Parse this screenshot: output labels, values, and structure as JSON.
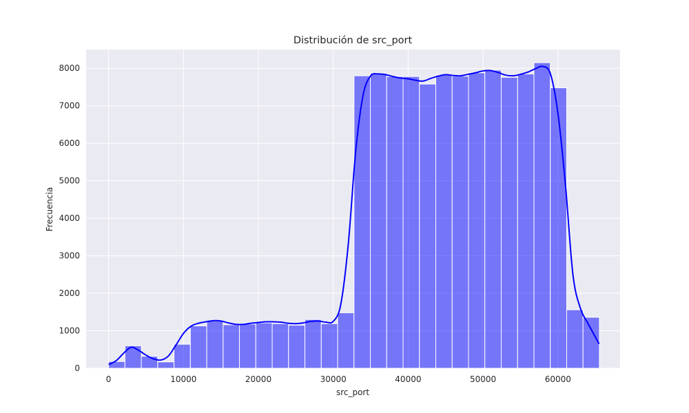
{
  "chart_data": {
    "type": "bar",
    "title": "Distribución de src_port",
    "xlabel": "src_port",
    "ylabel": "Frecuencia",
    "xlim": [
      -3000,
      68300
    ],
    "ylim": [
      0,
      8500
    ],
    "xticks": [
      0,
      10000,
      20000,
      30000,
      40000,
      50000,
      60000
    ],
    "yticks": [
      0,
      1000,
      2000,
      3000,
      4000,
      5000,
      6000,
      7000,
      8000
    ],
    "grid": true,
    "bin_range": [
      0,
      65535
    ],
    "bins": 30,
    "values": [
      180,
      600,
      320,
      170,
      640,
      1130,
      1260,
      1160,
      1180,
      1210,
      1190,
      1150,
      1300,
      1190,
      1480,
      7800,
      7870,
      7780,
      7780,
      7580,
      7820,
      7790,
      7880,
      7950,
      7760,
      7850,
      8150,
      7480,
      1560,
      1360
    ],
    "kde": {
      "x": [
        0,
        1000,
        2000,
        3000,
        4000,
        5000,
        6000,
        7000,
        8000,
        9000,
        10000,
        11000,
        12000,
        13000,
        14000,
        15000,
        16000,
        17000,
        18000,
        19000,
        20000,
        21000,
        22000,
        23000,
        24000,
        25000,
        26000,
        27000,
        28000,
        29000,
        30000,
        31000,
        32000,
        33000,
        34000,
        35000,
        36000,
        37000,
        38000,
        39000,
        40000,
        41000,
        42000,
        43000,
        44000,
        45000,
        46000,
        47000,
        48000,
        49000,
        50000,
        51000,
        52000,
        53000,
        54000,
        55000,
        56000,
        57000,
        58000,
        59000,
        60000,
        61000,
        62000,
        63000,
        64000,
        65500
      ],
      "y": [
        100,
        200,
        400,
        560,
        480,
        350,
        250,
        220,
        330,
        620,
        930,
        1120,
        1200,
        1240,
        1270,
        1260,
        1210,
        1170,
        1170,
        1200,
        1220,
        1240,
        1240,
        1230,
        1200,
        1190,
        1210,
        1250,
        1260,
        1230,
        1250,
        1700,
        3300,
        5800,
        7300,
        7800,
        7850,
        7830,
        7780,
        7740,
        7720,
        7680,
        7660,
        7730,
        7790,
        7830,
        7810,
        7800,
        7840,
        7880,
        7930,
        7940,
        7890,
        7820,
        7800,
        7840,
        7900,
        7990,
        8050,
        7850,
        6800,
        4900,
        2500,
        1600,
        1200,
        650
      ],
      "color": "#0000ff"
    },
    "colors": {
      "bar_fill": "#0000ff",
      "bar_alpha": 0.5,
      "bar_edge": "#ffffff",
      "plot_bg": "#eaeaf2",
      "grid": "#ffffff"
    }
  }
}
